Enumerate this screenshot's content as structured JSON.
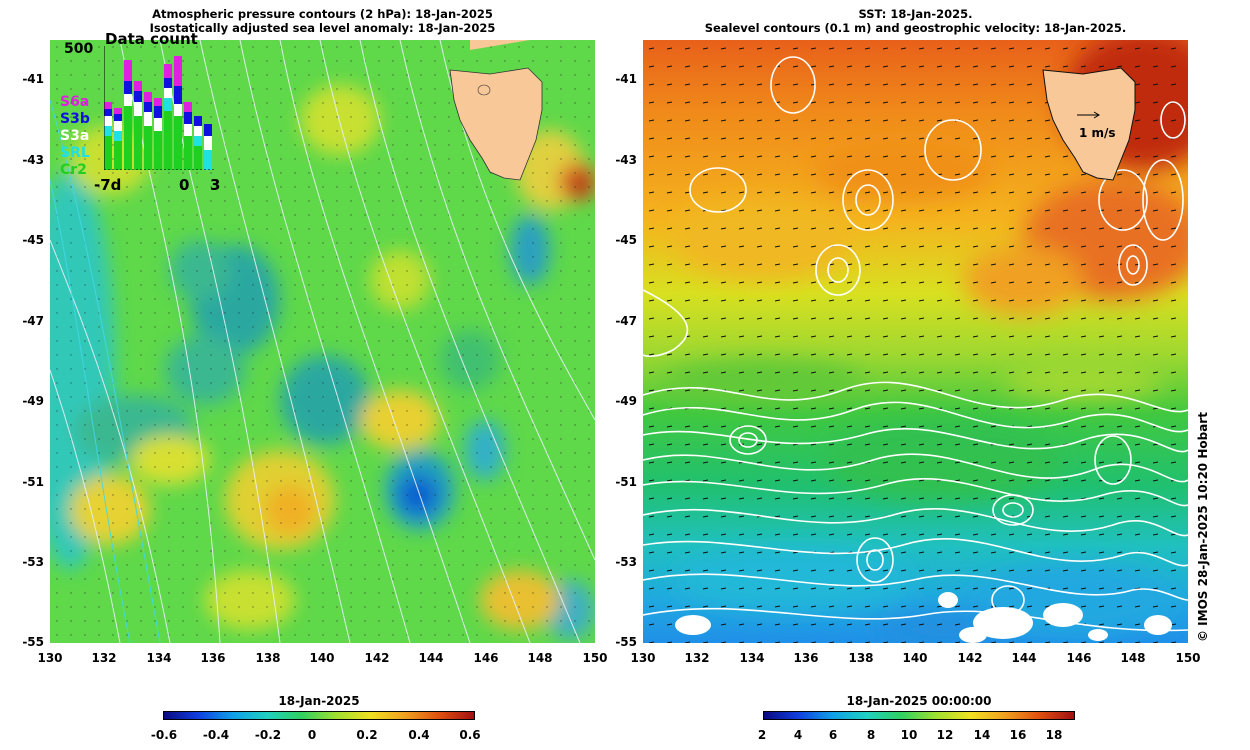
{
  "left_panel": {
    "title_line1": "Atmospheric pressure contours (2 hPa): 18-Jan-2025",
    "title_line2": "Isostatically adjusted sea level anomaly: 18-Jan-2025",
    "inset": {
      "title": "Data count",
      "ymax_label": "500",
      "legend": [
        {
          "name": "S6a",
          "color": "#e020e0"
        },
        {
          "name": "S3b",
          "color": "#1010e0"
        },
        {
          "name": "S3a",
          "color": "#ffffff"
        },
        {
          "name": "SRL",
          "color": "#20e0e0"
        },
        {
          "name": "Cr2",
          "color": "#20d020"
        }
      ],
      "x_labels": [
        "-7d",
        "0",
        "3"
      ]
    },
    "colorbar": {
      "date": "18-Jan-2025",
      "ticks": [
        "-0.6",
        "-0.4",
        "-0.2",
        "0",
        "0.2",
        "0.4",
        "0.6"
      ]
    }
  },
  "right_panel": {
    "title_line1": "SST: 18-Jan-2025.",
    "title_line2": "Sealevel contours (0.1 m) and geostrophic velocity: 18-Jan-2025.",
    "velocity_scale_label": "1 m/s",
    "colorbar": {
      "date": "18-Jan-2025 00:00:00",
      "ticks": [
        "2",
        "4",
        "6",
        "8",
        "10",
        "12",
        "14",
        "16",
        "18"
      ]
    }
  },
  "axes": {
    "lat_ticks": [
      "-41",
      "-43",
      "-45",
      "-47",
      "-49",
      "-51",
      "-53",
      "-55"
    ],
    "lon_ticks": [
      "130",
      "132",
      "134",
      "136",
      "138",
      "140",
      "142",
      "144",
      "146",
      "148",
      "150"
    ]
  },
  "credit": "© IMOS 28-Jan-2025 10:20 Hobart",
  "colors": {
    "land": "#f8c898",
    "sla_green": "#46d246",
    "sst_orange": "#f08a1a"
  }
}
